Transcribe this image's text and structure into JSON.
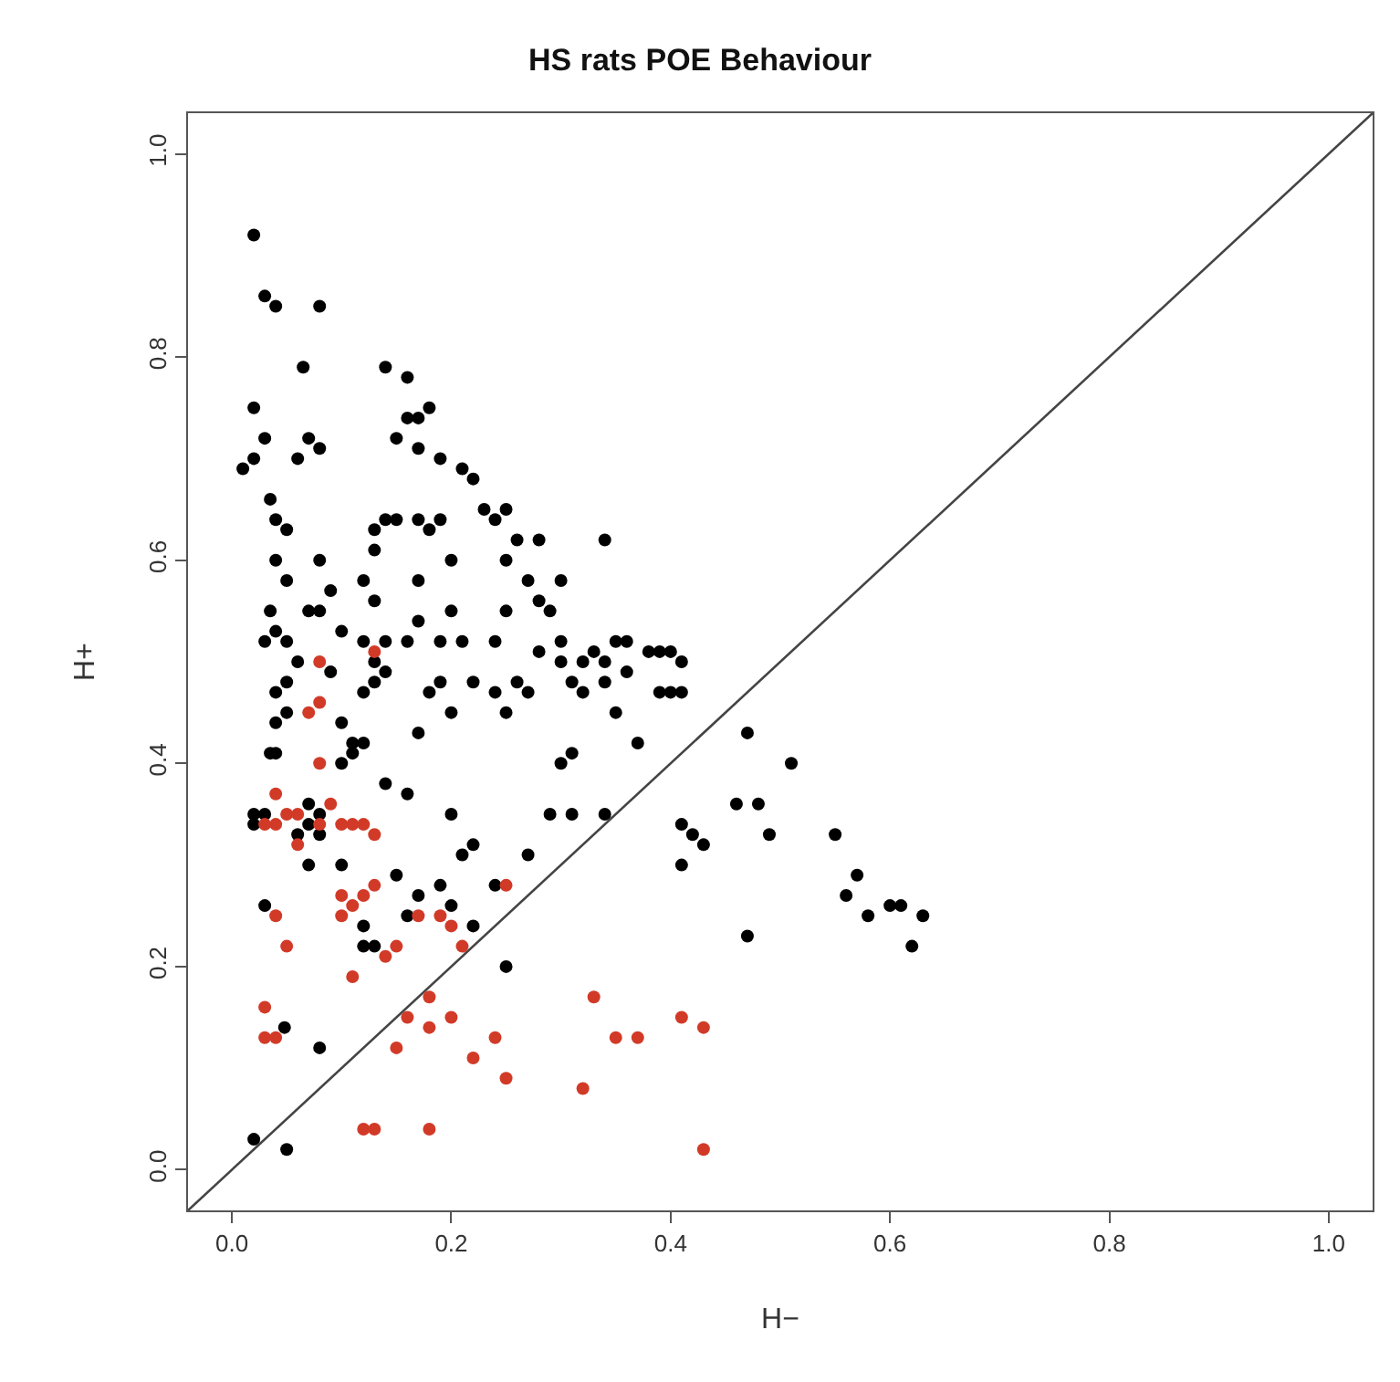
{
  "chart_data": {
    "type": "scatter",
    "title": "HS rats POE Behaviour",
    "xlabel": "H−",
    "ylabel": "H+",
    "xlim": [
      -0.04,
      1.04
    ],
    "ylim": [
      -0.04,
      1.04
    ],
    "xticks": [
      {
        "value": 0,
        "label": "0.0"
      },
      {
        "value": 0.2,
        "label": "0.2"
      },
      {
        "value": 0.4,
        "label": "0.4"
      },
      {
        "value": 0.6,
        "label": "0.6"
      },
      {
        "value": 0.8,
        "label": "0.8"
      },
      {
        "value": 1,
        "label": "1.0"
      }
    ],
    "yticks": [
      {
        "value": 0,
        "label": "0.0"
      },
      {
        "value": 0.2,
        "label": "0.2"
      },
      {
        "value": 0.4,
        "label": "0.4"
      },
      {
        "value": 0.6,
        "label": "0.6"
      },
      {
        "value": 0.8,
        "label": "0.8"
      },
      {
        "value": 1,
        "label": "1.0"
      }
    ],
    "grid": false,
    "legend": false,
    "marker": "circle",
    "series": [
      {
        "color": "#000000",
        "x": [
          0.02,
          0.03,
          0.04,
          0.08,
          0.065,
          0.02,
          0.03,
          0.07,
          0.08,
          0.01,
          0.02,
          0.06,
          0.035,
          0.04,
          0.05,
          0.04,
          0.05,
          0.035,
          0.04,
          0.03,
          0.05,
          0.08,
          0.07,
          0.08,
          0.09,
          0.06,
          0.05,
          0.04,
          0.05,
          0.04,
          0.09,
          0.1,
          0.1,
          0.11,
          0.035,
          0.04,
          0.03,
          0.02,
          0.02,
          0.07,
          0.08,
          0.07,
          0.06,
          0.08,
          0.07,
          0.1,
          0.11,
          0.12,
          0.13,
          0.12,
          0.14,
          0.13,
          0.14,
          0.12,
          0.13,
          0.16,
          0.17,
          0.17,
          0.12,
          0.13,
          0.13,
          0.14,
          0.15,
          0.17,
          0.19,
          0.18,
          0.2,
          0.2,
          0.19,
          0.21,
          0.19,
          0.2,
          0.18,
          0.17,
          0.14,
          0.16,
          0.15,
          0.16,
          0.17,
          0.18,
          0.17,
          0.19,
          0.21,
          0.22,
          0.23,
          0.24,
          0.25,
          0.26,
          0.25,
          0.28,
          0.27,
          0.25,
          0.28,
          0.3,
          0.29,
          0.3,
          0.28,
          0.24,
          0.22,
          0.26,
          0.24,
          0.25,
          0.27,
          0.3,
          0.31,
          0.32,
          0.33,
          0.34,
          0.35,
          0.36,
          0.34,
          0.32,
          0.35,
          0.34,
          0.36,
          0.38,
          0.39,
          0.4,
          0.41,
          0.4,
          0.41,
          0.39,
          0.37,
          0.3,
          0.31,
          0.29,
          0.31,
          0.34,
          0.41,
          0.42,
          0.43,
          0.41,
          0.47,
          0.51,
          0.46,
          0.48,
          0.49,
          0.55,
          0.57,
          0.56,
          0.58,
          0.6,
          0.61,
          0.63,
          0.62,
          0.47,
          0.27,
          0.2,
          0.21,
          0.22,
          0.24,
          0.16,
          0.14,
          0.15,
          0.17,
          0.19,
          0.2,
          0.16,
          0.13,
          0.22,
          0.12,
          0.25,
          0.1,
          0.12,
          0.03,
          0.048,
          0.08,
          0.02,
          0.05
        ],
        "values": [
          0.92,
          0.86,
          0.85,
          0.85,
          0.79,
          0.75,
          0.72,
          0.72,
          0.71,
          0.69,
          0.7,
          0.7,
          0.66,
          0.64,
          0.63,
          0.6,
          0.58,
          0.55,
          0.53,
          0.52,
          0.52,
          0.6,
          0.55,
          0.55,
          0.57,
          0.5,
          0.48,
          0.47,
          0.45,
          0.44,
          0.49,
          0.53,
          0.44,
          0.42,
          0.41,
          0.41,
          0.35,
          0.35,
          0.34,
          0.36,
          0.35,
          0.34,
          0.33,
          0.33,
          0.3,
          0.4,
          0.41,
          0.42,
          0.48,
          0.47,
          0.49,
          0.5,
          0.52,
          0.52,
          0.56,
          0.52,
          0.54,
          0.58,
          0.58,
          0.61,
          0.63,
          0.64,
          0.64,
          0.64,
          0.64,
          0.63,
          0.6,
          0.55,
          0.52,
          0.52,
          0.48,
          0.45,
          0.47,
          0.43,
          0.79,
          0.78,
          0.72,
          0.74,
          0.74,
          0.75,
          0.71,
          0.7,
          0.69,
          0.68,
          0.65,
          0.64,
          0.65,
          0.62,
          0.6,
          0.62,
          0.58,
          0.55,
          0.56,
          0.58,
          0.55,
          0.52,
          0.51,
          0.52,
          0.48,
          0.48,
          0.47,
          0.45,
          0.47,
          0.5,
          0.48,
          0.5,
          0.51,
          0.5,
          0.52,
          0.52,
          0.48,
          0.47,
          0.45,
          0.62,
          0.49,
          0.51,
          0.51,
          0.51,
          0.5,
          0.47,
          0.47,
          0.47,
          0.42,
          0.4,
          0.41,
          0.35,
          0.35,
          0.35,
          0.34,
          0.33,
          0.32,
          0.3,
          0.43,
          0.4,
          0.36,
          0.36,
          0.33,
          0.33,
          0.29,
          0.27,
          0.25,
          0.26,
          0.26,
          0.25,
          0.22,
          0.23,
          0.31,
          0.35,
          0.31,
          0.32,
          0.28,
          0.37,
          0.38,
          0.29,
          0.27,
          0.28,
          0.26,
          0.25,
          0.22,
          0.24,
          0.24,
          0.2,
          0.3,
          0.22,
          0.26,
          0.14,
          0.12,
          0.03,
          0.02
        ]
      },
      {
        "color": "#d23a28",
        "x": [
          0.08,
          0.13,
          0.07,
          0.08,
          0.08,
          0.04,
          0.05,
          0.06,
          0.04,
          0.03,
          0.08,
          0.1,
          0.09,
          0.11,
          0.12,
          0.13,
          0.06,
          0.1,
          0.12,
          0.13,
          0.11,
          0.1,
          0.04,
          0.05,
          0.14,
          0.15,
          0.17,
          0.19,
          0.2,
          0.21,
          0.25,
          0.18,
          0.2,
          0.16,
          0.22,
          0.24,
          0.18,
          0.15,
          0.11,
          0.03,
          0.04,
          0.03,
          0.25,
          0.33,
          0.35,
          0.37,
          0.41,
          0.43,
          0.32,
          0.43,
          0.12,
          0.13,
          0.18
        ],
        "values": [
          0.5,
          0.51,
          0.45,
          0.46,
          0.4,
          0.37,
          0.35,
          0.35,
          0.34,
          0.34,
          0.34,
          0.34,
          0.36,
          0.34,
          0.34,
          0.33,
          0.32,
          0.27,
          0.27,
          0.28,
          0.26,
          0.25,
          0.25,
          0.22,
          0.21,
          0.22,
          0.25,
          0.25,
          0.24,
          0.22,
          0.28,
          0.17,
          0.15,
          0.15,
          0.11,
          0.13,
          0.14,
          0.12,
          0.19,
          0.16,
          0.13,
          0.13,
          0.09,
          0.17,
          0.13,
          0.13,
          0.15,
          0.14,
          0.08,
          0.02,
          0.04,
          0.04,
          0.04
        ]
      },
      {
        "type": "line",
        "color": "#444444",
        "x": [
          -0.04,
          1.04
        ],
        "values": [
          -0.04,
          1.04
        ],
        "line_style": "solid",
        "marker": "none"
      }
    ]
  }
}
